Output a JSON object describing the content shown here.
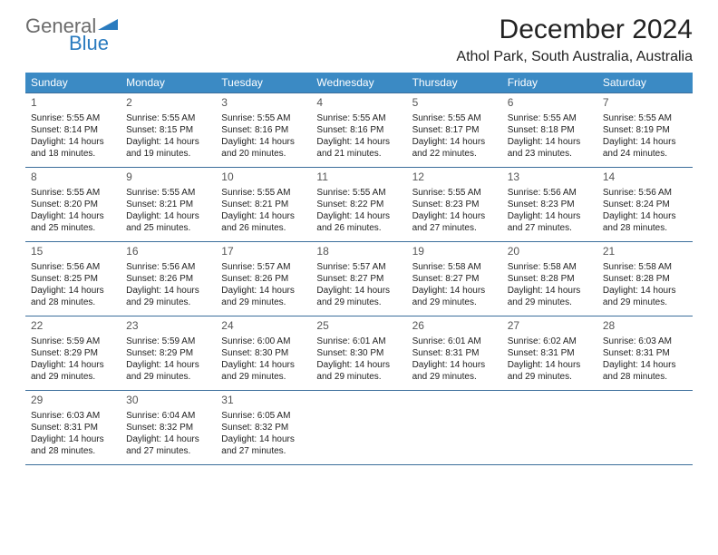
{
  "logo": {
    "word1": "General",
    "word2": "Blue",
    "word1_color": "#6b6b6b",
    "word2_color": "#2a7bbf"
  },
  "header": {
    "title": "December 2024",
    "location": "Athol Park, South Australia, Australia"
  },
  "weekday_header_bg": "#3b8ac4",
  "week_border_color": "#3b6e9b",
  "weekdays": [
    "Sunday",
    "Monday",
    "Tuesday",
    "Wednesday",
    "Thursday",
    "Friday",
    "Saturday"
  ],
  "weeks": [
    [
      {
        "day": "1",
        "sunrise": "5:55 AM",
        "sunset": "8:14 PM",
        "daylight": "14 hours and 18 minutes."
      },
      {
        "day": "2",
        "sunrise": "5:55 AM",
        "sunset": "8:15 PM",
        "daylight": "14 hours and 19 minutes."
      },
      {
        "day": "3",
        "sunrise": "5:55 AM",
        "sunset": "8:16 PM",
        "daylight": "14 hours and 20 minutes."
      },
      {
        "day": "4",
        "sunrise": "5:55 AM",
        "sunset": "8:16 PM",
        "daylight": "14 hours and 21 minutes."
      },
      {
        "day": "5",
        "sunrise": "5:55 AM",
        "sunset": "8:17 PM",
        "daylight": "14 hours and 22 minutes."
      },
      {
        "day": "6",
        "sunrise": "5:55 AM",
        "sunset": "8:18 PM",
        "daylight": "14 hours and 23 minutes."
      },
      {
        "day": "7",
        "sunrise": "5:55 AM",
        "sunset": "8:19 PM",
        "daylight": "14 hours and 24 minutes."
      }
    ],
    [
      {
        "day": "8",
        "sunrise": "5:55 AM",
        "sunset": "8:20 PM",
        "daylight": "14 hours and 25 minutes."
      },
      {
        "day": "9",
        "sunrise": "5:55 AM",
        "sunset": "8:21 PM",
        "daylight": "14 hours and 25 minutes."
      },
      {
        "day": "10",
        "sunrise": "5:55 AM",
        "sunset": "8:21 PM",
        "daylight": "14 hours and 26 minutes."
      },
      {
        "day": "11",
        "sunrise": "5:55 AM",
        "sunset": "8:22 PM",
        "daylight": "14 hours and 26 minutes."
      },
      {
        "day": "12",
        "sunrise": "5:55 AM",
        "sunset": "8:23 PM",
        "daylight": "14 hours and 27 minutes."
      },
      {
        "day": "13",
        "sunrise": "5:56 AM",
        "sunset": "8:23 PM",
        "daylight": "14 hours and 27 minutes."
      },
      {
        "day": "14",
        "sunrise": "5:56 AM",
        "sunset": "8:24 PM",
        "daylight": "14 hours and 28 minutes."
      }
    ],
    [
      {
        "day": "15",
        "sunrise": "5:56 AM",
        "sunset": "8:25 PM",
        "daylight": "14 hours and 28 minutes."
      },
      {
        "day": "16",
        "sunrise": "5:56 AM",
        "sunset": "8:26 PM",
        "daylight": "14 hours and 29 minutes."
      },
      {
        "day": "17",
        "sunrise": "5:57 AM",
        "sunset": "8:26 PM",
        "daylight": "14 hours and 29 minutes."
      },
      {
        "day": "18",
        "sunrise": "5:57 AM",
        "sunset": "8:27 PM",
        "daylight": "14 hours and 29 minutes."
      },
      {
        "day": "19",
        "sunrise": "5:58 AM",
        "sunset": "8:27 PM",
        "daylight": "14 hours and 29 minutes."
      },
      {
        "day": "20",
        "sunrise": "5:58 AM",
        "sunset": "8:28 PM",
        "daylight": "14 hours and 29 minutes."
      },
      {
        "day": "21",
        "sunrise": "5:58 AM",
        "sunset": "8:28 PM",
        "daylight": "14 hours and 29 minutes."
      }
    ],
    [
      {
        "day": "22",
        "sunrise": "5:59 AM",
        "sunset": "8:29 PM",
        "daylight": "14 hours and 29 minutes."
      },
      {
        "day": "23",
        "sunrise": "5:59 AM",
        "sunset": "8:29 PM",
        "daylight": "14 hours and 29 minutes."
      },
      {
        "day": "24",
        "sunrise": "6:00 AM",
        "sunset": "8:30 PM",
        "daylight": "14 hours and 29 minutes."
      },
      {
        "day": "25",
        "sunrise": "6:01 AM",
        "sunset": "8:30 PM",
        "daylight": "14 hours and 29 minutes."
      },
      {
        "day": "26",
        "sunrise": "6:01 AM",
        "sunset": "8:31 PM",
        "daylight": "14 hours and 29 minutes."
      },
      {
        "day": "27",
        "sunrise": "6:02 AM",
        "sunset": "8:31 PM",
        "daylight": "14 hours and 29 minutes."
      },
      {
        "day": "28",
        "sunrise": "6:03 AM",
        "sunset": "8:31 PM",
        "daylight": "14 hours and 28 minutes."
      }
    ],
    [
      {
        "day": "29",
        "sunrise": "6:03 AM",
        "sunset": "8:31 PM",
        "daylight": "14 hours and 28 minutes."
      },
      {
        "day": "30",
        "sunrise": "6:04 AM",
        "sunset": "8:32 PM",
        "daylight": "14 hours and 27 minutes."
      },
      {
        "day": "31",
        "sunrise": "6:05 AM",
        "sunset": "8:32 PM",
        "daylight": "14 hours and 27 minutes."
      },
      null,
      null,
      null,
      null
    ]
  ],
  "labels": {
    "sunrise": "Sunrise:",
    "sunset": "Sunset:",
    "daylight": "Daylight:"
  }
}
